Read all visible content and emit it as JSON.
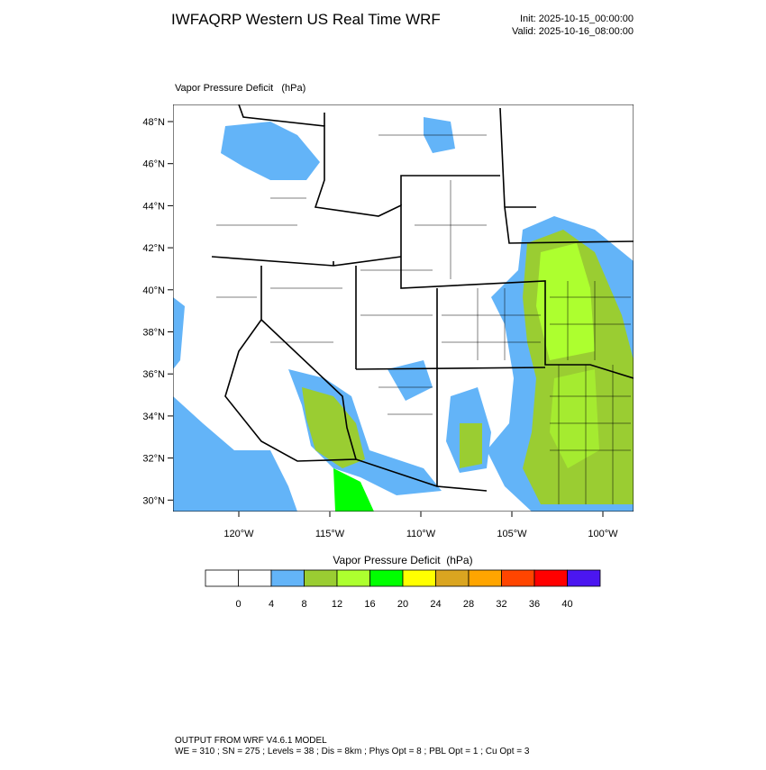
{
  "header": {
    "title": "IWFAQRP Western US Real Time WRF",
    "init": "Init: 2025-10-15_00:00:00",
    "valid": "Valid: 2025-10-16_08:00:00"
  },
  "map": {
    "field_title": "Vapor Pressure Deficit   (hPa)",
    "lat_labels": [
      "48°N",
      "46°N",
      "44°N",
      "42°N",
      "40°N",
      "38°N",
      "36°N",
      "34°N",
      "32°N",
      "30°N"
    ],
    "lon_labels": [
      "120°W",
      "115°W",
      "110°W",
      "105°W",
      "100°W"
    ]
  },
  "colorbar": {
    "title": "Vapor Pressure Deficit  (hPa)",
    "colors": [
      "#ffffff",
      "#ffffff",
      "#63b4f8",
      "#9acd32",
      "#adff2f",
      "#00ff00",
      "#ffff00",
      "#daa520",
      "#ffa500",
      "#ff4500",
      "#ff0000",
      "#4b16f0"
    ],
    "labels": [
      "0",
      "4",
      "8",
      "12",
      "16",
      "20",
      "24",
      "28",
      "32",
      "36",
      "40"
    ]
  },
  "footer": {
    "line1": "OUTPUT FROM WRF V4.6.1 MODEL",
    "line2": "WE = 310 ; SN = 275 ; Levels = 38 ; Dis = 8km ; Phys Opt = 8 ; PBL Opt = 1 ; Cu Opt = 3"
  }
}
